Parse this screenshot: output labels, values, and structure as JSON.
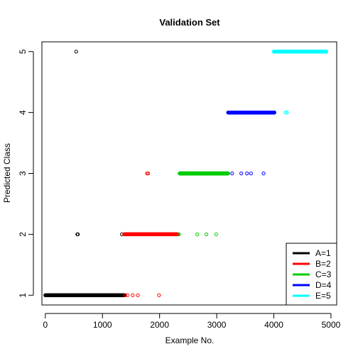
{
  "chart_data": {
    "type": "scatter",
    "title": "Validation Set",
    "xlabel": "Example No.",
    "ylabel": "Predicted Class",
    "xlim": [
      -60,
      5100
    ],
    "ylim": [
      0.84,
      5.16
    ],
    "x_ticks": [
      0,
      1000,
      2000,
      3000,
      4000,
      5000
    ],
    "x_tick_labels": [
      "0",
      "1000",
      "2000",
      "3000",
      "4000",
      "5000"
    ],
    "y_ticks": [
      1,
      2,
      3,
      4,
      5
    ],
    "y_tick_labels": [
      "1",
      "2",
      "3",
      "4",
      "5"
    ],
    "grid": false,
    "legend_position": "bottom-right",
    "series": [
      {
        "name": "A=1",
        "color": "#000000",
        "dense_runs": [
          {
            "x_start": 0,
            "x_end": 1380,
            "y": 1
          }
        ],
        "points": [
          {
            "x": 540,
            "y": 5
          },
          {
            "x": 560,
            "y": 2
          },
          {
            "x": 570,
            "y": 2
          },
          {
            "x": 1340,
            "y": 2
          }
        ]
      },
      {
        "name": "B=2",
        "color": "#ff0000",
        "dense_runs": [
          {
            "x_start": 1380,
            "x_end": 2320,
            "y": 2
          }
        ],
        "points": [
          {
            "x": 1400,
            "y": 1
          },
          {
            "x": 1440,
            "y": 1
          },
          {
            "x": 1530,
            "y": 1
          },
          {
            "x": 1620,
            "y": 1
          },
          {
            "x": 1990,
            "y": 1
          },
          {
            "x": 1780,
            "y": 3
          },
          {
            "x": 1800,
            "y": 3
          }
        ]
      },
      {
        "name": "C=3",
        "color": "#00cd00",
        "dense_runs": [
          {
            "x_start": 2350,
            "x_end": 3200,
            "y": 3
          }
        ],
        "points": [
          {
            "x": 2340,
            "y": 2
          },
          {
            "x": 2660,
            "y": 2
          },
          {
            "x": 2820,
            "y": 2
          },
          {
            "x": 2990,
            "y": 2
          }
        ]
      },
      {
        "name": "D=4",
        "color": "#0000ff",
        "dense_runs": [
          {
            "x_start": 3200,
            "x_end": 4010,
            "y": 4
          }
        ],
        "points": [
          {
            "x": 3270,
            "y": 3
          },
          {
            "x": 3430,
            "y": 3
          },
          {
            "x": 3530,
            "y": 3
          },
          {
            "x": 3600,
            "y": 3
          },
          {
            "x": 3820,
            "y": 3
          }
        ]
      },
      {
        "name": "E=5",
        "color": "#00ffff",
        "dense_runs": [
          {
            "x_start": 4000,
            "x_end": 4920,
            "y": 5
          }
        ],
        "points": [
          {
            "x": 4200,
            "y": 4
          },
          {
            "x": 4230,
            "y": 4
          }
        ]
      }
    ]
  }
}
